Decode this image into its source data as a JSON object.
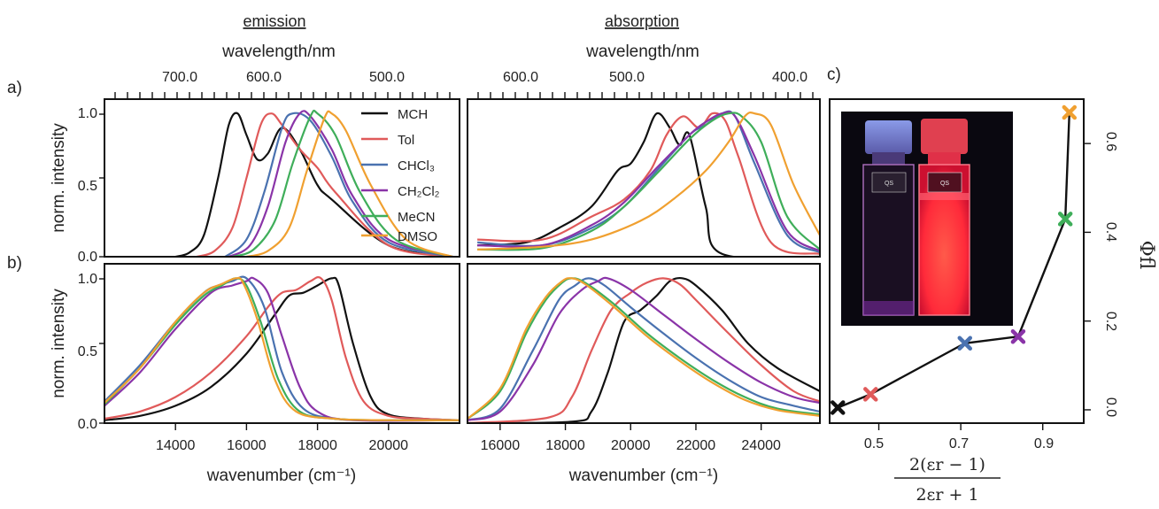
{
  "figure": {
    "headers": {
      "emission": "emission",
      "absorption": "absorption"
    },
    "top_axis_label": "wavelength/nm",
    "bottom_axis_label": "wavenumber (cm⁻¹)",
    "y_axis_label": "norm. intensity",
    "panel_labels": {
      "a": "a)",
      "b": "b)",
      "c": "c)"
    },
    "phi_label": "Φfl",
    "x_fraction_label": {
      "numerator": "2(εr − 1)",
      "denominator": "2εr + 1"
    },
    "inset_photo": {
      "left_cell": "QS\n10.00mm",
      "right_cell": "QS\n10.00mm"
    },
    "colors": {
      "MCH": "#111111",
      "Tol": "#e05a5a",
      "CHCl3": "#4a72b0",
      "CH2Cl2": "#8a34a8",
      "MeCN": "#3fae5a",
      "DMSO": "#f0a030"
    }
  },
  "chart_data": [
    {
      "type": "line",
      "panel": "a) emission (wavelength)",
      "top_axis": {
        "label": "wavelength/nm",
        "ticks": [
          "700.0",
          "600.0",
          "500.0"
        ]
      },
      "ylabel": "norm. intensity",
      "yticks": [
        "0.0",
        "0.5",
        "1.0"
      ],
      "ylim": [
        0,
        1.1
      ],
      "legend": [
        "MCH",
        "Tol",
        "CHCl3",
        "CH2Cl2",
        "MeCN",
        "DMSO"
      ],
      "legend_display": [
        "MCH",
        "Tol",
        "CHCl₃",
        "CH₂Cl₂",
        "MeCN",
        "DMSO"
      ],
      "legend_position": "top-right",
      "series": [
        {
          "name": "MCH",
          "x": [
            12200,
            14000,
            15600,
            16000,
            16500,
            17000,
            17400,
            17700,
            18000,
            18250,
            18500,
            18800,
            19200,
            19600,
            20000
          ],
          "values": [
            0,
            0.08,
            0.4,
            0.5,
            0.75,
            0.9,
            0.72,
            0.68,
            0.85,
            1.0,
            0.92,
            0.55,
            0.15,
            0.03,
            0
          ]
        },
        {
          "name": "Tol",
          "x": [
            12200,
            14000,
            15500,
            16000,
            16500,
            17000,
            17300,
            17600,
            18000,
            18400,
            18900,
            19400
          ],
          "values": [
            0,
            0.08,
            0.45,
            0.62,
            0.75,
            0.92,
            1.0,
            0.92,
            0.55,
            0.2,
            0.04,
            0
          ]
        },
        {
          "name": "CHCl3",
          "x": [
            12200,
            14000,
            15000,
            15600,
            16200,
            16700,
            17000,
            17500,
            18000,
            18600
          ],
          "values": [
            0,
            0.1,
            0.38,
            0.7,
            0.95,
            1.0,
            0.9,
            0.45,
            0.12,
            0
          ]
        },
        {
          "name": "CH2Cl2",
          "x": [
            12200,
            14000,
            15000,
            15600,
            16200,
            16500,
            16900,
            17400,
            17900,
            18500
          ],
          "values": [
            0,
            0.12,
            0.42,
            0.75,
            0.98,
            1.0,
            0.8,
            0.35,
            0.08,
            0
          ]
        },
        {
          "name": "MeCN",
          "x": [
            12200,
            13800,
            14800,
            15500,
            16000,
            16200,
            16700,
            17200,
            17800,
            18400
          ],
          "values": [
            0,
            0.12,
            0.45,
            0.85,
            1.0,
            0.98,
            0.65,
            0.25,
            0.05,
            0
          ]
        },
        {
          "name": "DMSO",
          "x": [
            12200,
            13500,
            14500,
            15200,
            15600,
            15800,
            16300,
            16800,
            17400,
            18000
          ],
          "values": [
            0,
            0.12,
            0.5,
            0.88,
            1.0,
            0.97,
            0.6,
            0.2,
            0.04,
            0
          ]
        }
      ]
    },
    {
      "type": "line",
      "panel": "absorption (wavelength)",
      "top_axis": {
        "label": "wavelength/nm",
        "ticks": [
          "600.0",
          "500.0",
          "400.0"
        ]
      },
      "ylim": [
        0,
        1.1
      ],
      "series": [
        {
          "name": "MCH",
          "x": [
            15000,
            18000,
            18500,
            19000,
            19300,
            19600,
            20000,
            20400,
            20800,
            21200,
            22000,
            23000,
            24000,
            25500
          ],
          "values": [
            0,
            0.02,
            0.35,
            0.85,
            0.78,
            0.9,
            1.0,
            0.8,
            0.65,
            0.6,
            0.35,
            0.2,
            0.1,
            0.08
          ]
        },
        {
          "name": "Tol",
          "x": [
            15000,
            16500,
            17500,
            17900,
            18300,
            18700,
            19200,
            19700,
            20200,
            21000,
            22000,
            23500,
            25500
          ],
          "values": [
            0.02,
            0.1,
            0.7,
            0.95,
            1.0,
            0.9,
            0.98,
            0.85,
            0.6,
            0.4,
            0.28,
            0.12,
            0.12
          ]
        },
        {
          "name": "CHCl3",
          "x": [
            15000,
            16000,
            17000,
            17600,
            18000,
            18500,
            19000,
            20000,
            21000,
            22000,
            23500,
            25500
          ],
          "values": [
            0.03,
            0.15,
            0.65,
            0.98,
            1.0,
            0.92,
            0.85,
            0.6,
            0.35,
            0.2,
            0.08,
            0.1
          ]
        },
        {
          "name": "CH2Cl2",
          "x": [
            15000,
            16000,
            17000,
            17600,
            18000,
            18500,
            19000,
            20000,
            21000,
            22000,
            23500,
            25500
          ],
          "values": [
            0.04,
            0.18,
            0.7,
            0.98,
            1.0,
            0.94,
            0.85,
            0.62,
            0.38,
            0.22,
            0.08,
            0.08
          ]
        },
        {
          "name": "MeCN",
          "x": [
            15000,
            16000,
            16800,
            17400,
            17800,
            18300,
            19000,
            20000,
            21000,
            22000,
            23500,
            25500
          ],
          "values": [
            0.05,
            0.28,
            0.8,
            0.98,
            1.0,
            0.95,
            0.82,
            0.58,
            0.35,
            0.18,
            0.06,
            0.05
          ]
        },
        {
          "name": "DMSO",
          "x": [
            15000,
            15800,
            16500,
            17000,
            17300,
            17800,
            18500,
            19500,
            20500,
            22000,
            23500,
            25500
          ],
          "values": [
            0.15,
            0.5,
            0.92,
            1.0,
            0.98,
            0.8,
            0.6,
            0.4,
            0.25,
            0.12,
            0.07,
            0.05
          ]
        }
      ]
    },
    {
      "type": "line",
      "panel": "b) emission (wavenumber)",
      "xlabel": "wavenumber (cm⁻¹)",
      "ylabel": "norm. intensity",
      "xticks": [
        14000,
        16000,
        18000,
        20000
      ],
      "yticks": [
        "0.0",
        "0.5",
        "1.0"
      ],
      "xlim": [
        12000,
        22000
      ],
      "ylim": [
        0,
        1.1
      ],
      "series": [
        {
          "name": "MCH",
          "x": [
            12000,
            13000,
            14000,
            15000,
            16000,
            16800,
            17200,
            17600,
            18000,
            18400,
            18600,
            19000,
            19500,
            20000,
            21000,
            22000
          ],
          "values": [
            0.02,
            0.05,
            0.12,
            0.25,
            0.48,
            0.75,
            0.88,
            0.9,
            0.95,
            1.0,
            0.95,
            0.55,
            0.18,
            0.06,
            0.03,
            0.02
          ]
        },
        {
          "name": "Tol",
          "x": [
            12000,
            13000,
            14000,
            15000,
            16000,
            16600,
            17000,
            17400,
            17800,
            18100,
            18400,
            18800,
            19300,
            20000,
            21000,
            22000
          ],
          "values": [
            0.03,
            0.08,
            0.18,
            0.35,
            0.6,
            0.8,
            0.9,
            0.92,
            0.98,
            1.0,
            0.85,
            0.45,
            0.15,
            0.05,
            0.03,
            0.02
          ]
        },
        {
          "name": "CHCl3",
          "x": [
            12000,
            13000,
            14000,
            14800,
            15200,
            15600,
            16000,
            16500,
            17000,
            17600,
            18500,
            20000,
            22000
          ],
          "values": [
            0.15,
            0.4,
            0.7,
            0.9,
            0.95,
            0.98,
            1.0,
            0.8,
            0.35,
            0.1,
            0.03,
            0.02,
            0.02
          ]
        },
        {
          "name": "CH2Cl2",
          "x": [
            12000,
            13000,
            14000,
            15000,
            15600,
            16000,
            16200,
            16600,
            17000,
            17500,
            18000,
            19000,
            22000
          ],
          "values": [
            0.12,
            0.35,
            0.65,
            0.9,
            0.95,
            0.98,
            1.0,
            0.9,
            0.6,
            0.25,
            0.08,
            0.02,
            0.02
          ]
        },
        {
          "name": "MeCN",
          "x": [
            12000,
            13000,
            14000,
            14800,
            15300,
            15700,
            16000,
            16400,
            16900,
            17500,
            18500,
            20000,
            22000
          ],
          "values": [
            0.13,
            0.38,
            0.68,
            0.88,
            0.95,
            1.0,
            0.95,
            0.7,
            0.3,
            0.08,
            0.03,
            0.02,
            0.02
          ]
        },
        {
          "name": "DMSO",
          "x": [
            12000,
            13000,
            14000,
            14800,
            15300,
            15700,
            15900,
            16300,
            16800,
            17400,
            18500,
            20000,
            22000
          ],
          "values": [
            0.14,
            0.38,
            0.7,
            0.9,
            0.96,
            1.0,
            0.97,
            0.72,
            0.3,
            0.08,
            0.03,
            0.02,
            0.02
          ]
        }
      ]
    },
    {
      "type": "line",
      "panel": "absorption (wavenumber)",
      "xlabel": "wavenumber (cm⁻¹)",
      "xticks": [
        16000,
        18000,
        20000,
        22000,
        24000
      ],
      "xlim": [
        15000,
        25800
      ],
      "ylim": [
        0,
        1.1
      ],
      "series": [
        {
          "name": "MCH",
          "x": [
            15000,
            18200,
            18800,
            19300,
            19800,
            20300,
            20800,
            21200,
            21600,
            22000,
            22800,
            23600,
            24500,
            25800
          ],
          "values": [
            0,
            0.01,
            0.08,
            0.35,
            0.7,
            0.78,
            0.88,
            0.98,
            1.0,
            0.95,
            0.78,
            0.55,
            0.38,
            0.22
          ]
        },
        {
          "name": "Tol",
          "x": [
            15000,
            17500,
            18200,
            18800,
            19400,
            20000,
            20500,
            21000,
            21500,
            22000,
            23000,
            24000,
            25000,
            25800
          ],
          "values": [
            0,
            0.04,
            0.18,
            0.5,
            0.78,
            0.9,
            0.97,
            1.0,
            0.96,
            0.85,
            0.62,
            0.4,
            0.22,
            0.15
          ]
        },
        {
          "name": "CHCl3",
          "x": [
            15000,
            16000,
            17000,
            17800,
            18300,
            18700,
            19200,
            20000,
            21000,
            22000,
            23000,
            24000,
            25000,
            25800
          ],
          "values": [
            0.02,
            0.1,
            0.5,
            0.85,
            0.95,
            1.0,
            0.95,
            0.8,
            0.62,
            0.45,
            0.3,
            0.18,
            0.12,
            0.08
          ]
        },
        {
          "name": "CH2Cl2",
          "x": [
            15000,
            16000,
            17000,
            17800,
            18500,
            19000,
            19300,
            20000,
            21000,
            22000,
            23000,
            24000,
            25000,
            25800
          ],
          "values": [
            0.02,
            0.08,
            0.4,
            0.75,
            0.92,
            0.98,
            1.0,
            0.92,
            0.75,
            0.58,
            0.42,
            0.28,
            0.18,
            0.14
          ]
        },
        {
          "name": "MeCN",
          "x": [
            15000,
            16000,
            16800,
            17400,
            17900,
            18200,
            18600,
            19500,
            20500,
            21500,
            22500,
            23500,
            24500,
            25800
          ],
          "values": [
            0.03,
            0.22,
            0.62,
            0.85,
            0.97,
            1.0,
            0.97,
            0.82,
            0.62,
            0.45,
            0.3,
            0.18,
            0.1,
            0.06
          ]
        },
        {
          "name": "DMSO",
          "x": [
            15000,
            16000,
            16800,
            17400,
            17900,
            18200,
            18600,
            19500,
            20500,
            21500,
            22500,
            23500,
            24500,
            25800
          ],
          "values": [
            0.03,
            0.24,
            0.65,
            0.87,
            0.98,
            1.0,
            0.96,
            0.8,
            0.6,
            0.43,
            0.28,
            0.16,
            0.09,
            0.05
          ]
        }
      ]
    },
    {
      "type": "line",
      "panel": "c) fluorescence quantum yield vs solvent polarity",
      "ylabel": "Φfl",
      "xticks": [
        "0.5",
        "0.7",
        "0.9"
      ],
      "yticks": [
        "0.0",
        "0.2",
        "0.4",
        "0.6"
      ],
      "xlim": [
        0.38,
        1.0
      ],
      "ylim": [
        -0.03,
        0.7
      ],
      "series": [
        {
          "name": "Φfl",
          "x": [
            0.4,
            0.48,
            0.71,
            0.84,
            0.955,
            0.965
          ],
          "values": [
            0.005,
            0.035,
            0.15,
            0.165,
            0.43,
            0.67
          ]
        }
      ],
      "marker_solvents": [
        "MCH",
        "Tol",
        "CHCl3",
        "CH2Cl2",
        "MeCN",
        "DMSO"
      ]
    }
  ]
}
